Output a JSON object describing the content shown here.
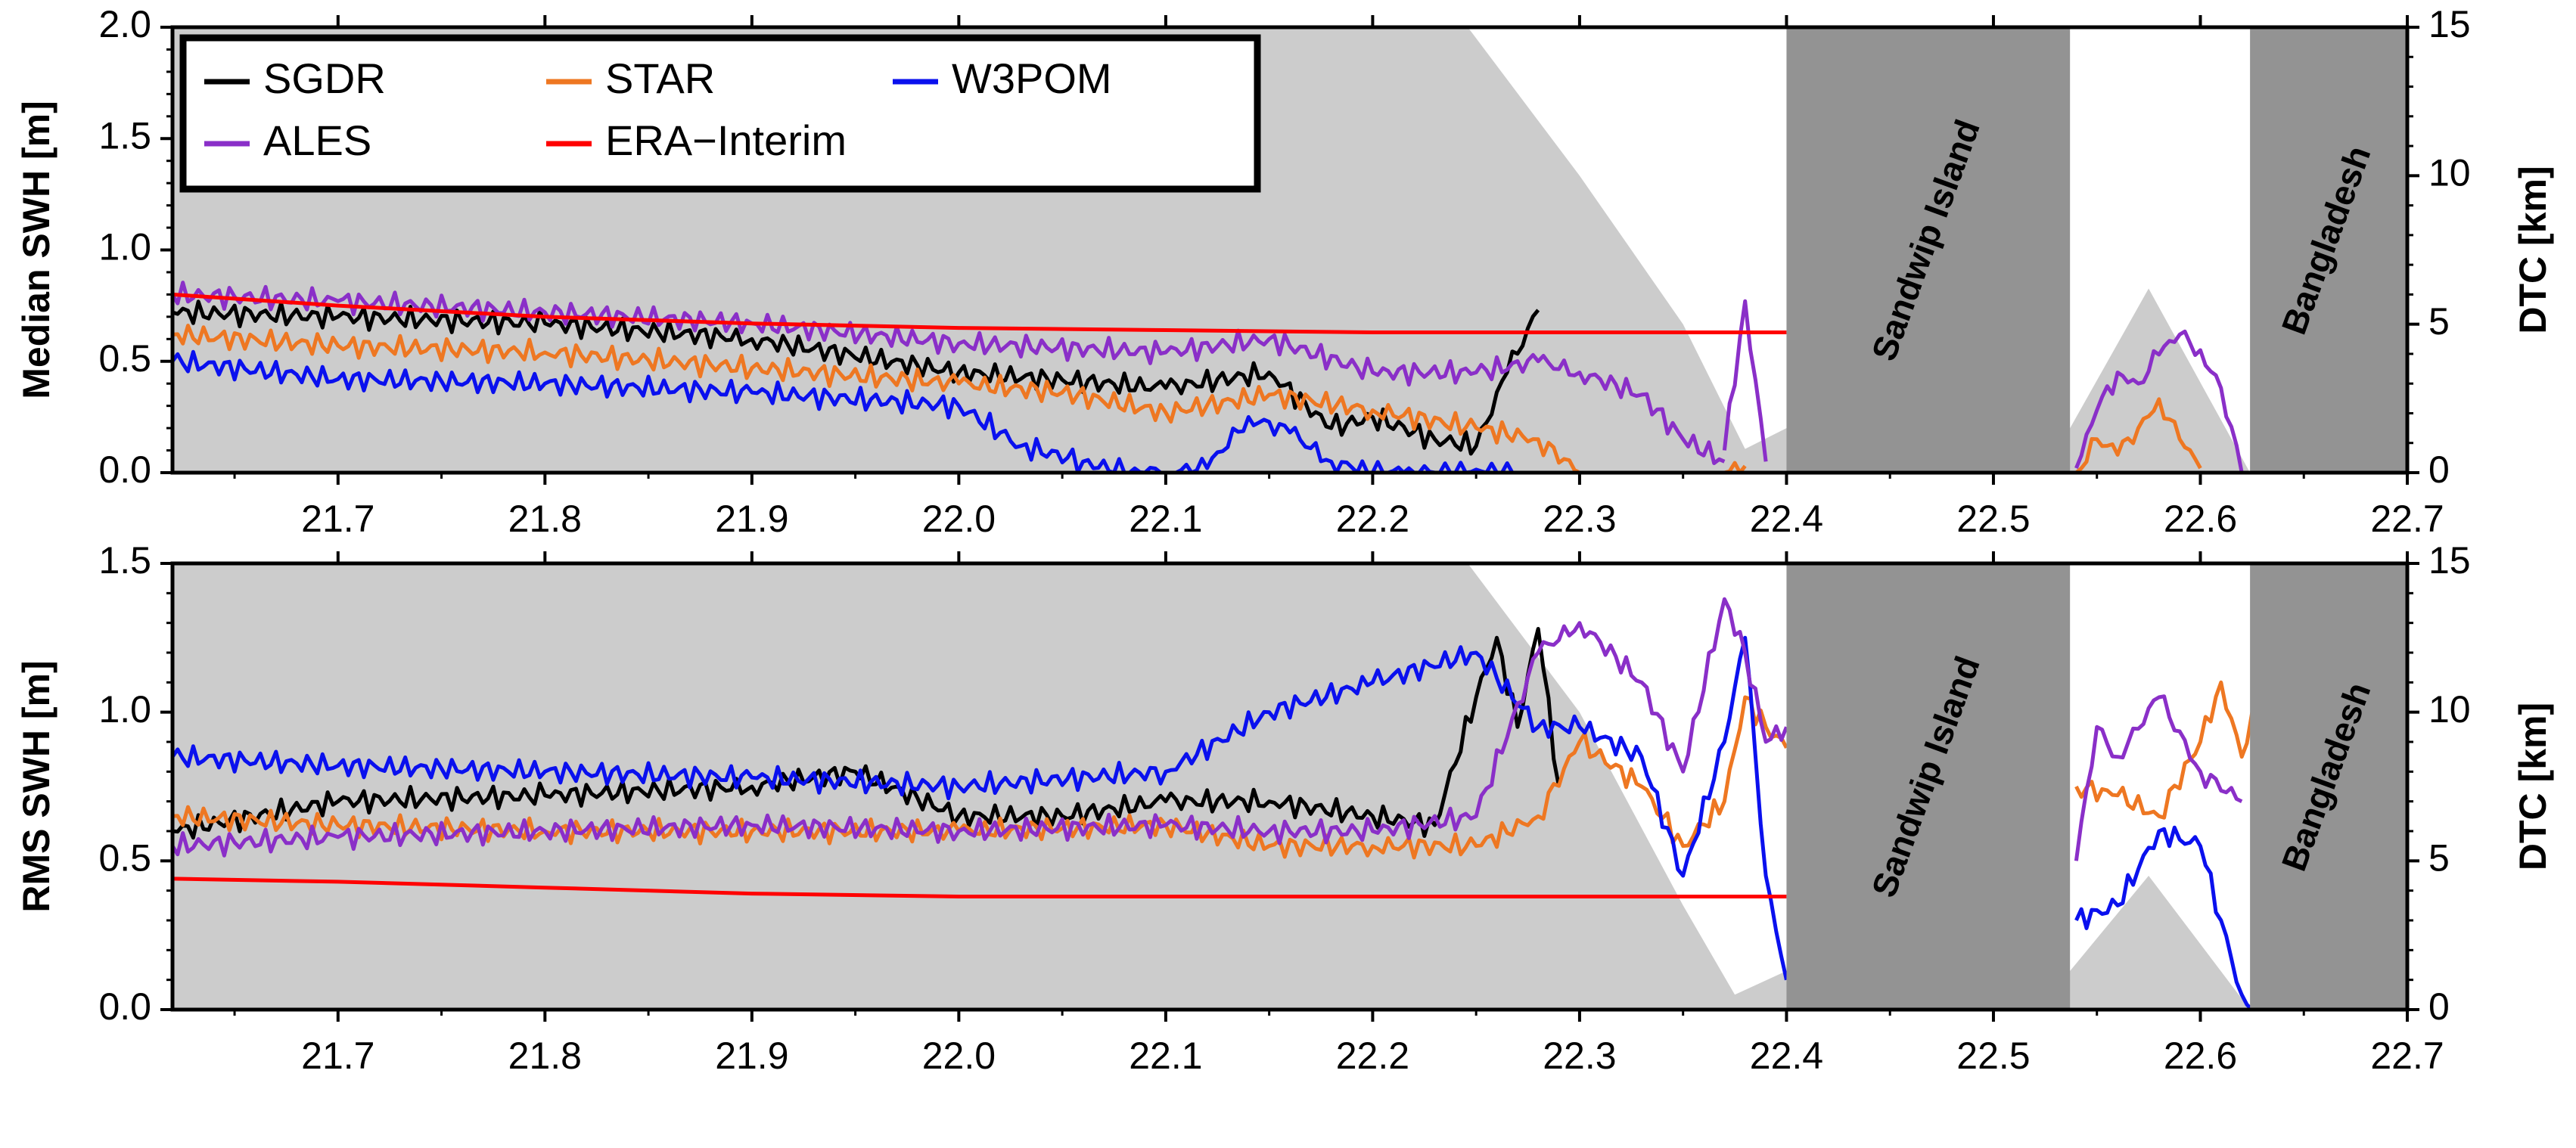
{
  "colors": {
    "SGDR": "#000000",
    "STAR": "#ee7722",
    "W3POM": "#0a10ee",
    "ALES": "#8a2fc8",
    "ERA-Interim": "#ff0000",
    "dtc_fill": "#cccccc",
    "land_fill": "#939393"
  },
  "legend": {
    "entries": [
      "SGDR",
      "STAR",
      "W3POM",
      "ALES",
      "ERA−Interim"
    ],
    "placement": "top-left of upper panel"
  },
  "land_labels": [
    "Sandwip Island",
    "Bangladesh"
  ],
  "chart_data": [
    {
      "type": "line",
      "panel": "top",
      "ylabel": "Median SWH [m]",
      "ylabel_right": "DTC [km]",
      "xlim": [
        21.62,
        22.7
      ],
      "ylim": [
        0,
        2.0
      ],
      "ylim_right": [
        0,
        15
      ],
      "x_ticks": [
        "21.7",
        "21.8",
        "21.9",
        "22.0",
        "22.1",
        "22.2",
        "22.3",
        "22.4",
        "22.5",
        "22.6",
        "22.7"
      ],
      "y_ticks": [
        "0.0",
        "0.5",
        "1.0",
        "1.5",
        "2.0"
      ],
      "y_ticks_right": [
        "0",
        "5",
        "10",
        "15"
      ],
      "land_regions": [
        {
          "name": "Sandwip Island",
          "x": [
            22.4,
            22.537
          ]
        },
        {
          "name": "Bangladesh",
          "x": [
            22.624,
            22.7
          ]
        }
      ],
      "dtc": {
        "x": [
          21.62,
          22.246,
          22.3,
          22.35,
          22.38,
          22.4,
          22.537,
          22.575,
          22.624
        ],
        "y": [
          15,
          15,
          10,
          5,
          0.8,
          1.5,
          1.5,
          6.2,
          0
        ]
      },
      "series": [
        {
          "name": "SGDR",
          "segments": [
            {
              "x": [
                21.62,
                21.7,
                21.8,
                21.9,
                22.0,
                22.1,
                22.15,
                22.18,
                22.2,
                22.23,
                22.25,
                22.265,
                22.28
              ],
              "y": [
                0.72,
                0.7,
                0.67,
                0.6,
                0.45,
                0.38,
                0.45,
                0.2,
                0.25,
                0.15,
                0.12,
                0.45,
                0.73
              ]
            }
          ]
        },
        {
          "name": "STAR",
          "segments": [
            {
              "x": [
                21.62,
                21.7,
                21.8,
                21.9,
                22.0,
                22.05,
                22.1,
                22.15,
                22.2,
                22.25,
                22.28,
                22.3
              ],
              "y": [
                0.62,
                0.57,
                0.54,
                0.47,
                0.4,
                0.36,
                0.27,
                0.35,
                0.28,
                0.2,
                0.15,
                0.0
              ]
            },
            {
              "x": [
                22.37,
                22.38
              ],
              "y": [
                0.0,
                0.03
              ]
            },
            {
              "x": [
                22.54,
                22.55,
                22.56,
                22.57,
                22.58,
                22.59,
                22.6
              ],
              "y": [
                0.0,
                0.15,
                0.08,
                0.2,
                0.33,
                0.15,
                0.02
              ]
            }
          ]
        },
        {
          "name": "W3POM",
          "segments": [
            {
              "x": [
                21.62,
                21.7,
                21.8,
                21.9,
                22.0,
                22.03,
                22.06,
                22.08,
                22.1,
                22.12,
                22.14,
                22.16,
                22.18,
                22.2,
                22.22,
                22.24,
                22.27
              ],
              "y": [
                0.5,
                0.42,
                0.4,
                0.36,
                0.3,
                0.12,
                0.05,
                0.0,
                0.0,
                0.02,
                0.25,
                0.18,
                0.05,
                0.0,
                0.0,
                0.0,
                0.0
              ]
            }
          ]
        },
        {
          "name": "ALES",
          "segments": [
            {
              "x": [
                21.62,
                21.7,
                21.8,
                21.9,
                22.0,
                22.1,
                22.15,
                22.2,
                22.25,
                22.28,
                22.3,
                22.33,
                22.35,
                22.37
              ],
              "y": [
                0.8,
                0.77,
                0.72,
                0.67,
                0.58,
                0.54,
                0.6,
                0.45,
                0.45,
                0.5,
                0.45,
                0.35,
                0.15,
                0.05
              ]
            },
            {
              "x": [
                22.37,
                22.38,
                22.39
              ],
              "y": [
                0.1,
                0.77,
                0.05
              ]
            },
            {
              "x": [
                22.54,
                22.55,
                22.56,
                22.57,
                22.58,
                22.59,
                22.6,
                22.61,
                22.62
              ],
              "y": [
                0.02,
                0.28,
                0.45,
                0.4,
                0.53,
                0.62,
                0.55,
                0.38,
                0.0
              ]
            }
          ]
        },
        {
          "name": "ERA−Interim",
          "segments": [
            {
              "x": [
                21.62,
                21.7,
                21.8,
                21.9,
                22.0,
                22.1,
                22.2,
                22.3,
                22.4
              ],
              "y": [
                0.8,
                0.75,
                0.7,
                0.67,
                0.65,
                0.64,
                0.63,
                0.63,
                0.63
              ]
            }
          ]
        }
      ]
    },
    {
      "type": "line",
      "panel": "bottom",
      "ylabel": "RMS SWH [m]",
      "ylabel_right": "DTC [km]",
      "xlim": [
        21.62,
        22.7
      ],
      "ylim": [
        0,
        1.5
      ],
      "ylim_right": [
        0,
        15
      ],
      "x_ticks": [
        "21.7",
        "21.8",
        "21.9",
        "22.0",
        "22.1",
        "22.2",
        "22.3",
        "22.4",
        "22.5",
        "22.6",
        "22.7"
      ],
      "y_ticks": [
        "0.0",
        "0.5",
        "1.0",
        "1.5"
      ],
      "y_ticks_right": [
        "0",
        "5",
        "10",
        "15"
      ],
      "land_regions": [
        {
          "name": "Sandwip Island",
          "x": [
            22.4,
            22.537
          ]
        },
        {
          "name": "Bangladesh",
          "x": [
            22.624,
            22.7
          ]
        }
      ],
      "dtc": {
        "x": [
          21.62,
          22.246,
          22.3,
          22.35,
          22.375,
          22.4,
          22.537,
          22.575,
          22.624
        ],
        "y": [
          15,
          15,
          10,
          3.5,
          0.5,
          1.3,
          1.3,
          4.5,
          0
        ]
      },
      "series": [
        {
          "name": "SGDR",
          "segments": [
            {
              "x": [
                21.62,
                21.7,
                21.8,
                21.9,
                21.95,
                22.0,
                22.05,
                22.1,
                22.15,
                22.2,
                22.23,
                22.25,
                22.26,
                22.27,
                22.28,
                22.29
              ],
              "y": [
                0.6,
                0.7,
                0.72,
                0.75,
                0.8,
                0.65,
                0.65,
                0.7,
                0.7,
                0.65,
                0.62,
                1.05,
                1.25,
                0.95,
                1.28,
                0.75
              ]
            }
          ]
        },
        {
          "name": "STAR",
          "segments": [
            {
              "x": [
                21.62,
                21.7,
                21.8,
                21.9,
                22.0,
                22.1,
                22.15,
                22.2,
                22.25,
                22.28,
                22.3,
                22.33,
                22.35,
                22.37,
                22.38,
                22.39,
                22.4
              ],
              "y": [
                0.65,
                0.62,
                0.6,
                0.6,
                0.6,
                0.62,
                0.55,
                0.55,
                0.55,
                0.65,
                0.9,
                0.75,
                0.55,
                0.7,
                1.05,
                0.95,
                0.88
              ]
            },
            {
              "x": [
                22.54,
                22.56,
                22.58,
                22.6,
                22.61,
                22.62,
                22.625
              ],
              "y": [
                0.75,
                0.72,
                0.65,
                0.9,
                1.1,
                0.85,
                1.0
              ]
            }
          ]
        },
        {
          "name": "W3POM",
          "segments": [
            {
              "x": [
                21.62,
                21.7,
                21.8,
                21.9,
                22.0,
                22.1,
                22.15,
                22.2,
                22.25,
                22.28,
                22.3,
                22.33,
                22.35,
                22.37,
                22.38,
                22.39,
                22.4
              ],
              "y": [
                0.85,
                0.82,
                0.8,
                0.78,
                0.75,
                0.8,
                1.0,
                1.1,
                1.2,
                0.95,
                0.95,
                0.85,
                0.45,
                0.9,
                1.25,
                0.45,
                0.1
              ]
            },
            {
              "x": [
                22.54,
                22.56,
                22.58,
                22.6,
                22.61,
                22.62,
                22.625
              ],
              "y": [
                0.3,
                0.35,
                0.6,
                0.55,
                0.3,
                0.05,
                0.0
              ]
            }
          ]
        },
        {
          "name": "ALES",
          "segments": [
            {
              "x": [
                21.62,
                21.7,
                21.8,
                21.9,
                22.0,
                22.1,
                22.15,
                22.2,
                22.25,
                22.28,
                22.3,
                22.33,
                22.35,
                22.37,
                22.38,
                22.39,
                22.4
              ],
              "y": [
                0.55,
                0.58,
                0.6,
                0.62,
                0.6,
                0.62,
                0.6,
                0.6,
                0.65,
                1.2,
                1.3,
                1.1,
                0.8,
                1.38,
                1.2,
                0.9,
                0.95
              ]
            },
            {
              "x": [
                22.54,
                22.55,
                22.56,
                22.58,
                22.6,
                22.62
              ],
              "y": [
                0.5,
                0.95,
                0.85,
                1.05,
                0.8,
                0.7
              ]
            }
          ]
        },
        {
          "name": "ERA−Interim",
          "segments": [
            {
              "x": [
                21.62,
                21.7,
                21.8,
                21.9,
                22.0,
                22.1,
                22.2,
                22.3,
                22.4
              ],
              "y": [
                0.44,
                0.43,
                0.41,
                0.39,
                0.38,
                0.38,
                0.38,
                0.38,
                0.38
              ]
            }
          ]
        }
      ]
    }
  ]
}
